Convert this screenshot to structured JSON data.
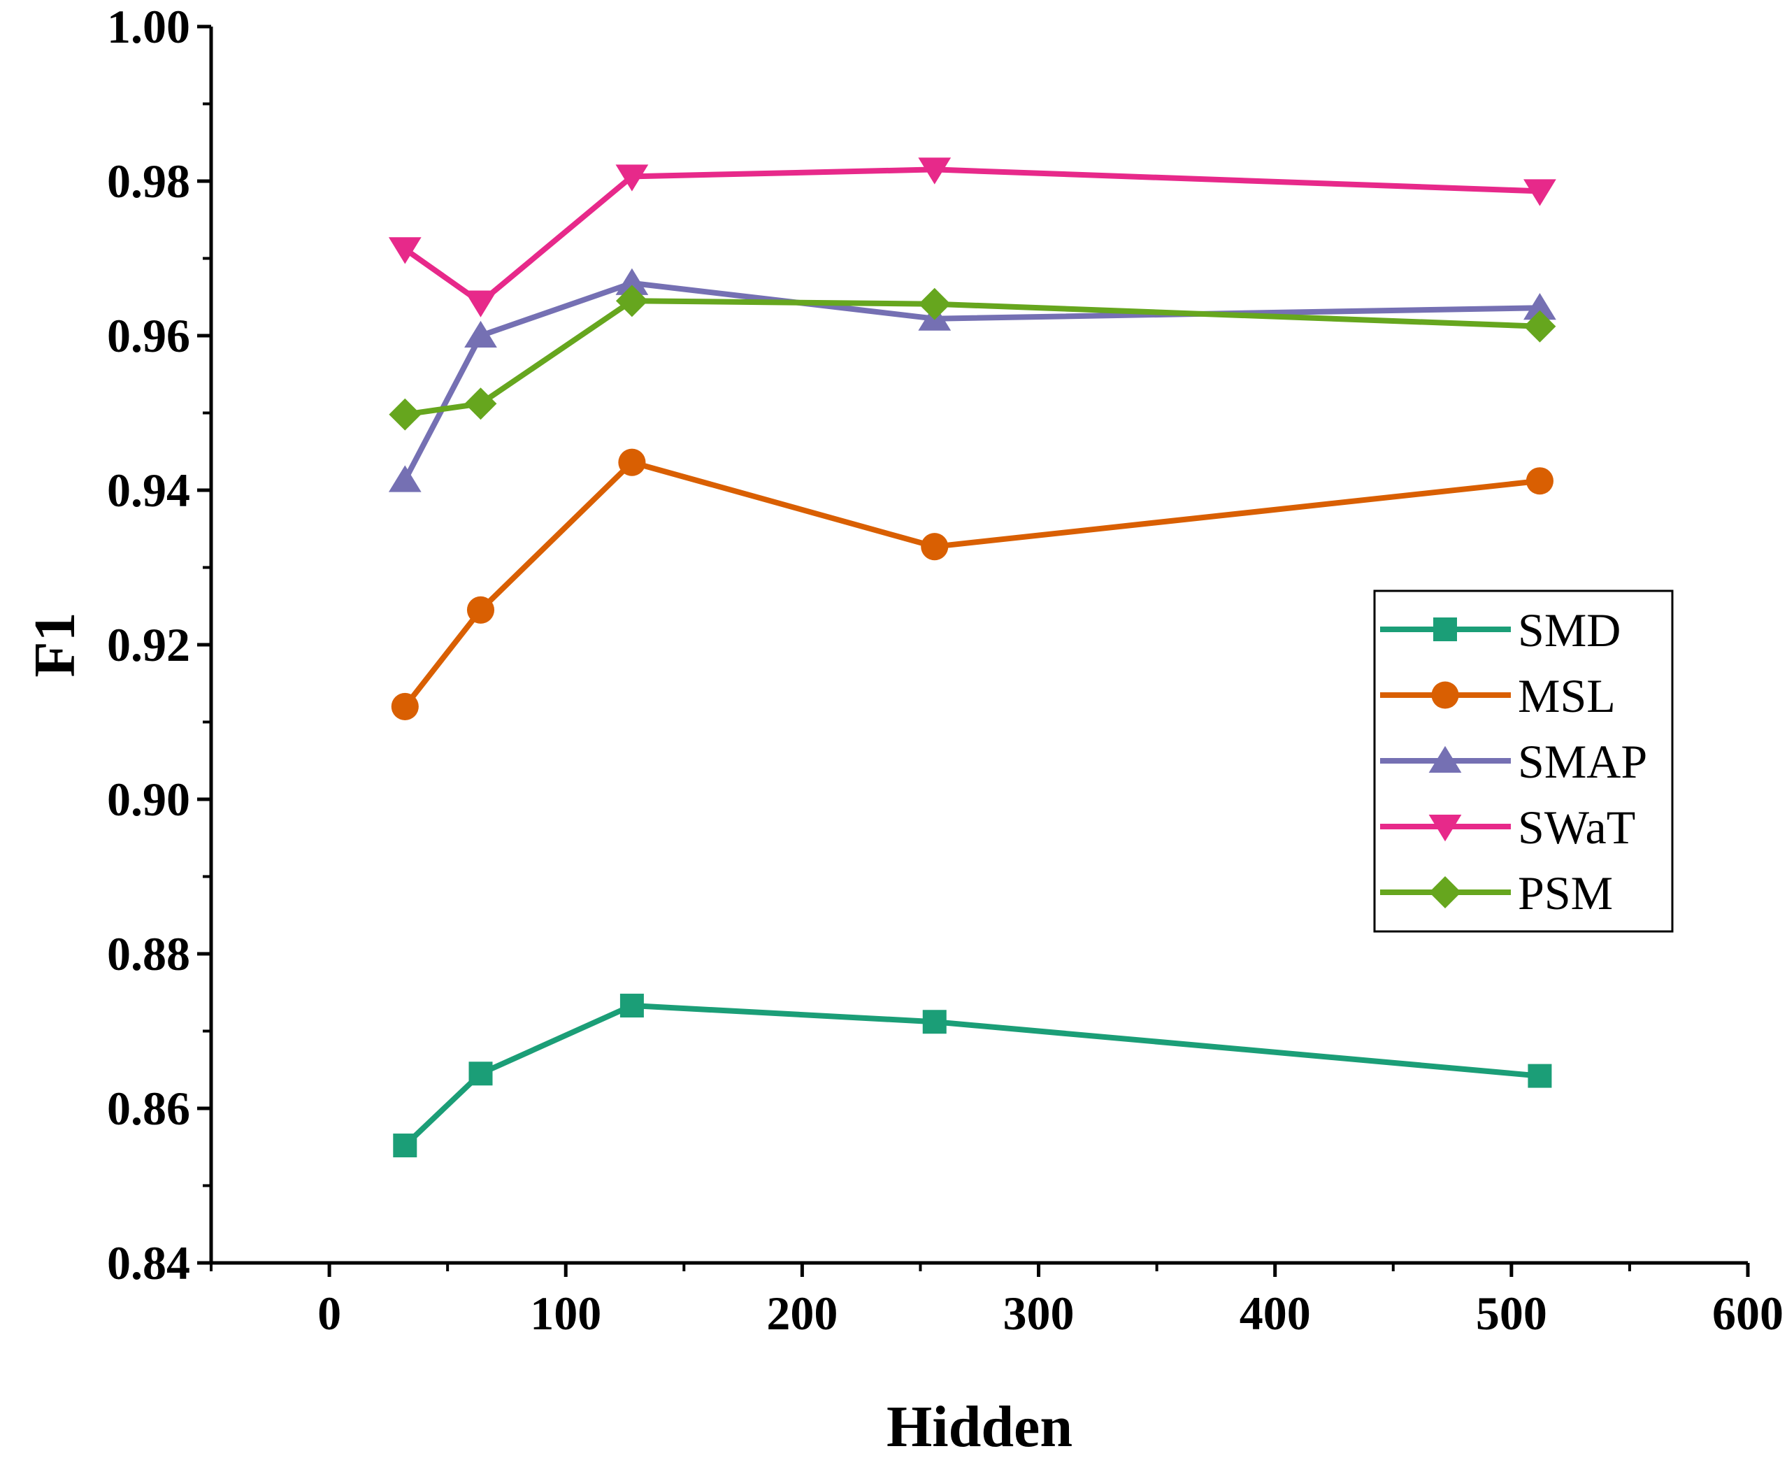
{
  "chart_data": {
    "type": "line",
    "title": "",
    "xlabel": "Hidden",
    "ylabel": "F1",
    "xlim": [
      -50,
      600
    ],
    "ylim": [
      0.84,
      1.0
    ],
    "x_ticks": [
      0,
      100,
      200,
      300,
      400,
      500,
      600
    ],
    "y_ticks": [
      0.84,
      0.86,
      0.88,
      0.9,
      0.92,
      0.94,
      0.96,
      0.98,
      1.0
    ],
    "x_tick_labels": [
      "0",
      "100",
      "200",
      "300",
      "400",
      "500",
      "600"
    ],
    "y_tick_labels": [
      "0.84",
      "0.86",
      "0.88",
      "0.90",
      "0.92",
      "0.94",
      "0.96",
      "0.98",
      "1.00"
    ],
    "x": [
      32,
      64,
      128,
      256,
      512
    ],
    "legend_position": "center-right",
    "grid": false,
    "series": [
      {
        "name": "SMD",
        "marker": "square",
        "color": "#1b9e77",
        "values": [
          0.8552,
          0.8645,
          0.8733,
          0.8712,
          0.8642
        ]
      },
      {
        "name": "MSL",
        "marker": "circle",
        "color": "#d95f02",
        "values": [
          0.912,
          0.9245,
          0.9436,
          0.9327,
          0.9412
        ]
      },
      {
        "name": "SMAP",
        "marker": "triangle-up",
        "color": "#7570b3",
        "values": [
          0.9413,
          0.96,
          0.9668,
          0.9622,
          0.9636
        ]
      },
      {
        "name": "SWaT",
        "marker": "triangle-down",
        "color": "#e7298a",
        "values": [
          0.9712,
          0.9643,
          0.9806,
          0.9815,
          0.9787
        ]
      },
      {
        "name": "PSM",
        "marker": "diamond",
        "color": "#66a61e",
        "values": [
          0.9498,
          0.9512,
          0.9645,
          0.9641,
          0.9612
        ]
      }
    ]
  }
}
